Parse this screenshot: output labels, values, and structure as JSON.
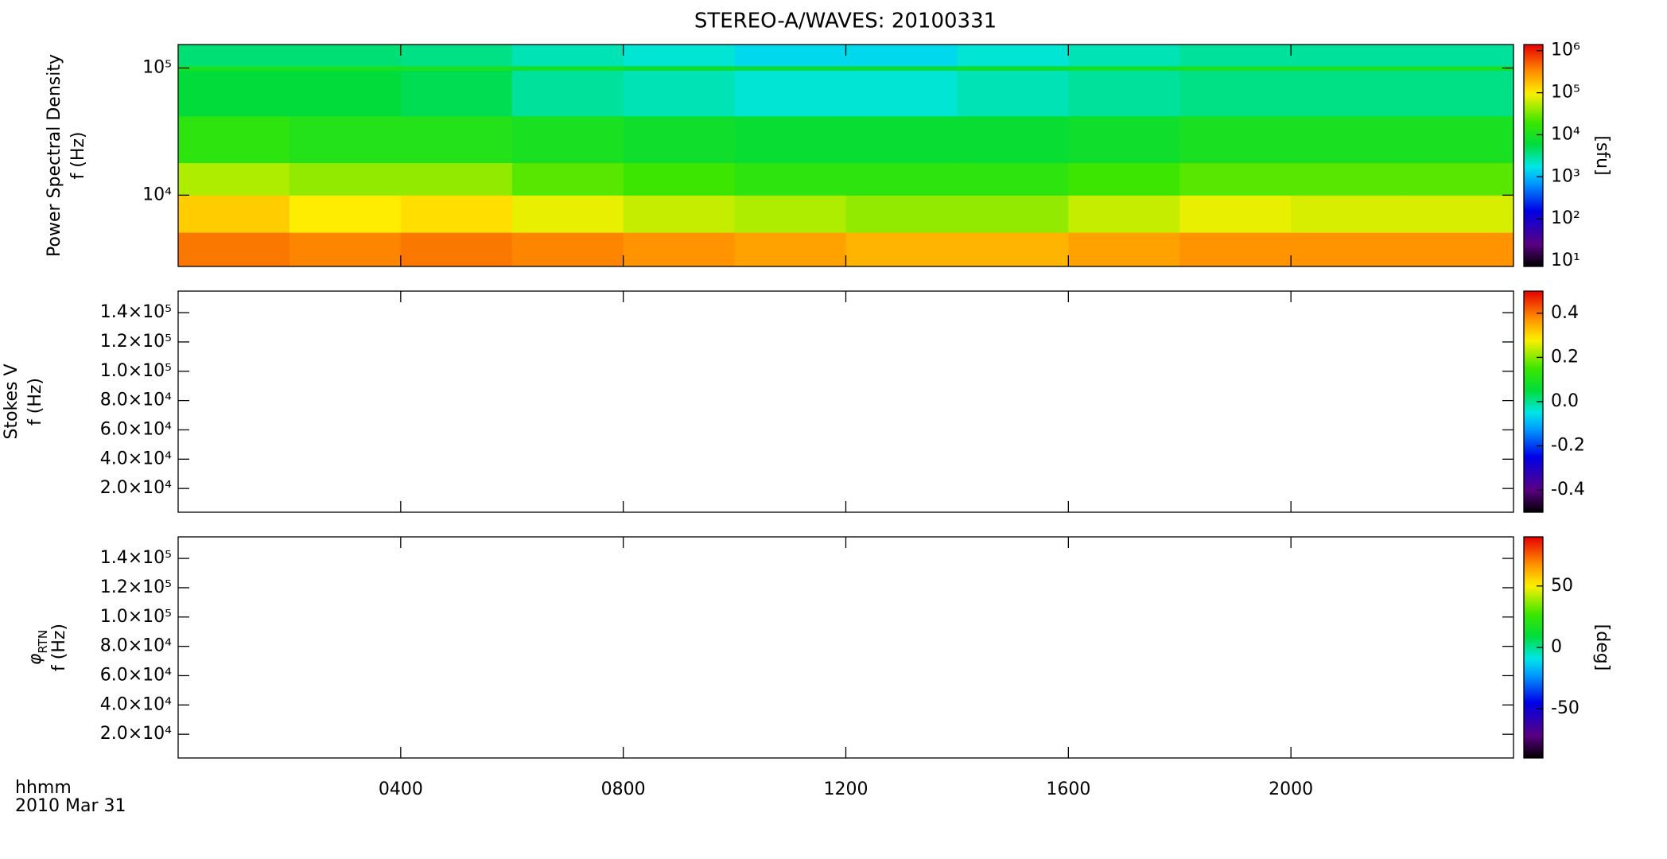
{
  "chart_data": [
    {
      "type": "spectrogram",
      "title": "STEREO-A/WAVES: 20100331",
      "ylabel": [
        "Power Spectral Density",
        "f (Hz)"
      ],
      "ylog": true,
      "ylim": [
        2750,
        153000
      ],
      "yticks": [
        {
          "value": 10000,
          "label": "10⁴"
        },
        {
          "value": 100000,
          "label": "10⁵"
        }
      ],
      "xlim": [
        0,
        24
      ],
      "xticks": [
        4,
        8,
        12,
        16,
        20
      ],
      "x_bins": [
        0,
        2,
        4,
        6,
        8,
        10,
        12,
        14,
        16,
        18,
        20,
        22,
        24
      ],
      "y_bins": [
        2750,
        5100,
        10000,
        18000,
        42000,
        96000,
        104000,
        153000
      ],
      "values": [
        [
          400000,
          350000,
          400000,
          350000,
          300000,
          250000,
          200000,
          200000,
          250000,
          300000,
          300000,
          300000
        ],
        [
          150000,
          100000,
          120000,
          80000,
          60000,
          50000,
          40000,
          40000,
          60000,
          80000,
          70000,
          70000
        ],
        [
          50000,
          40000,
          40000,
          25000,
          20000,
          15000,
          15000,
          15000,
          20000,
          25000,
          25000,
          25000
        ],
        [
          15000,
          12000,
          12000,
          10000,
          8000,
          7000,
          7000,
          7000,
          8000,
          10000,
          10000,
          10000
        ],
        [
          6000,
          6000,
          5000,
          3000,
          2500,
          2000,
          2000,
          2500,
          3000,
          3500,
          3500,
          3500
        ],
        [
          10000,
          10000,
          10000,
          9000,
          8000,
          7000,
          7000,
          8000,
          9000,
          10000,
          10000,
          10000
        ],
        [
          4000,
          4000,
          3500,
          2500,
          2000,
          1500,
          1500,
          2000,
          2500,
          3000,
          3000,
          3000
        ]
      ],
      "colormap": "rainbow",
      "zlog": true,
      "zlim": [
        7.4,
        1400000
      ],
      "zticks": [
        {
          "value": 10,
          "label": "10¹"
        },
        {
          "value": 100,
          "label": "10²"
        },
        {
          "value": 1000,
          "label": "10³"
        },
        {
          "value": 10000,
          "label": "10⁴"
        },
        {
          "value": 100000,
          "label": "10⁵"
        },
        {
          "value": 1000000,
          "label": "10⁶"
        }
      ],
      "zlabel": "[sfu]"
    },
    {
      "type": "spectrogram",
      "ylabel": [
        "Stokes V",
        "f (Hz)"
      ],
      "ylog": false,
      "ylim": [
        3800,
        154700
      ],
      "yticks": [
        {
          "value": 20000,
          "label": "2.0×10⁴"
        },
        {
          "value": 40000,
          "label": "4.0×10⁴"
        },
        {
          "value": 60000,
          "label": "6.0×10⁴"
        },
        {
          "value": 80000,
          "label": "8.0×10⁴"
        },
        {
          "value": 100000,
          "label": "1.0×10⁵"
        },
        {
          "value": 120000,
          "label": "1.2×10⁵"
        },
        {
          "value": 140000,
          "label": "1.4×10⁵"
        }
      ],
      "xlim": [
        0,
        24
      ],
      "xticks": [
        4,
        8,
        12,
        16,
        20
      ],
      "colormap": "rainbow",
      "zlog": false,
      "zlim": [
        -0.5,
        0.5
      ],
      "zticks": [
        -0.4,
        -0.2,
        {
          "value": 0,
          "label": "0.0"
        },
        0.2,
        0.4
      ]
    },
    {
      "type": "spectrogram",
      "ylabel_symbol": "φ",
      "ylabel_subscript": "RTN",
      "ylabel": [
        "f (Hz)"
      ],
      "ylog": false,
      "ylim": [
        3800,
        154700
      ],
      "yticks": [
        {
          "value": 20000,
          "label": "2.0×10⁴"
        },
        {
          "value": 40000,
          "label": "4.0×10⁴"
        },
        {
          "value": 60000,
          "label": "6.0×10⁴"
        },
        {
          "value": 80000,
          "label": "8.0×10⁴"
        },
        {
          "value": 100000,
          "label": "1.0×10⁵"
        },
        {
          "value": 120000,
          "label": "1.2×10⁵"
        },
        {
          "value": 140000,
          "label": "1.4×10⁵"
        }
      ],
      "xlim": [
        0,
        24
      ],
      "xticks": [
        {
          "value": 4,
          "label": "0400"
        },
        {
          "value": 8,
          "label": "0800"
        },
        {
          "value": 12,
          "label": "1200"
        },
        {
          "value": 16,
          "label": "1600"
        },
        {
          "value": 20,
          "label": "2000"
        }
      ],
      "xlabel": [
        "hhmm",
        "2010 Mar 31"
      ],
      "colormap": "rainbow",
      "zlog": false,
      "zlim": [
        -90,
        90
      ],
      "zticks": [
        -50,
        0,
        50
      ],
      "zlabel": "[deg]"
    }
  ]
}
